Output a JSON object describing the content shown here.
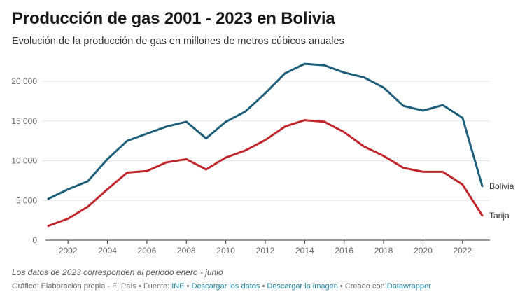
{
  "header": {
    "title": "Producción de gas 2001 - 2023 en Bolivia",
    "subtitle": "Evolución de la producción de gas en millones de metros cúbicos anuales"
  },
  "footer": {
    "note": "Los datos de 2023 corresponden al periodo enero - junio",
    "prefix": "Gráfico: Elaboración propia - El País • Fuente: ",
    "source_link": "INE",
    "sep1": " • ",
    "download_data": "Descargar los datos",
    "sep2": " • ",
    "download_image": "Descargar la imagen",
    "created_with": " • Creado con ",
    "datawrapper": "Datawrapper"
  },
  "chart_data": {
    "type": "line",
    "x": [
      2001,
      2002,
      2003,
      2004,
      2005,
      2006,
      2007,
      2008,
      2009,
      2010,
      2011,
      2012,
      2013,
      2014,
      2015,
      2016,
      2017,
      2018,
      2019,
      2020,
      2021,
      2022,
      2023
    ],
    "series": [
      {
        "name": "Bolivia",
        "color": "#1d5f7a",
        "values": [
          5200,
          6400,
          7400,
          10200,
          12500,
          13400,
          14300,
          14900,
          12800,
          14900,
          16200,
          18500,
          21000,
          22200,
          22000,
          21100,
          20500,
          19200,
          16900,
          16300,
          17000,
          15400,
          6800
        ]
      },
      {
        "name": "Tarija",
        "color": "#c0272d",
        "values": [
          1800,
          2700,
          4200,
          6400,
          8500,
          8700,
          9800,
          10200,
          8900,
          10400,
          11300,
          12600,
          14300,
          15100,
          14900,
          13600,
          11800,
          10600,
          9100,
          8600,
          8600,
          7000,
          3100
        ]
      }
    ],
    "yticks": [
      0,
      5000,
      10000,
      15000,
      20000
    ],
    "ytick_labels": [
      "0",
      "5 000",
      "10 000",
      "15 000",
      "20 000"
    ],
    "xticks": [
      2002,
      2004,
      2006,
      2008,
      2010,
      2012,
      2014,
      2016,
      2018,
      2020,
      2022
    ],
    "xtick_labels": [
      "2002",
      "2004",
      "2006",
      "2008",
      "2010",
      "2012",
      "2014",
      "2016",
      "2018",
      "2020",
      "2022"
    ],
    "xlim": [
      2001,
      2023
    ],
    "ylim": [
      0,
      23000
    ],
    "grid": true,
    "legend": "inline labels at line ends"
  }
}
